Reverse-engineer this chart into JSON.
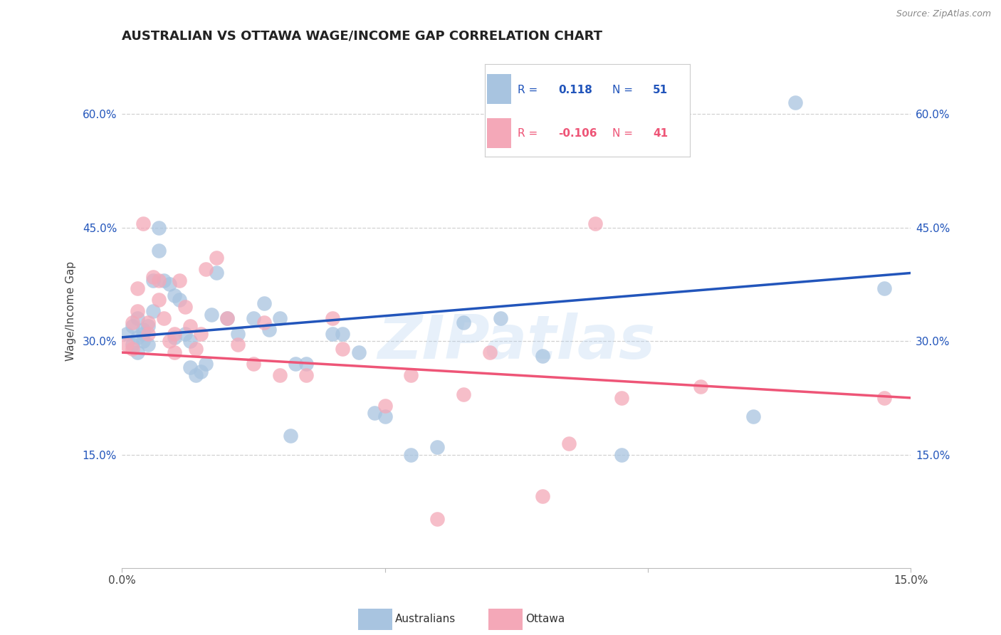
{
  "title": "AUSTRALIAN VS OTTAWA WAGE/INCOME GAP CORRELATION CHART",
  "source": "Source: ZipAtlas.com",
  "ylabel": "Wage/Income Gap",
  "x_min": 0.0,
  "x_max": 0.15,
  "y_min": 0.0,
  "y_max": 0.68,
  "y_ticks": [
    0.15,
    0.3,
    0.45,
    0.6
  ],
  "y_tick_labels": [
    "15.0%",
    "30.0%",
    "45.0%",
    "60.0%"
  ],
  "blue_R": 0.118,
  "blue_N": 51,
  "pink_R": -0.106,
  "pink_N": 41,
  "blue_color": "#A8C4E0",
  "pink_color": "#F4A8B8",
  "blue_line_color": "#2255BB",
  "pink_line_color": "#EE5577",
  "watermark": "ZIPatlas",
  "bg_color": "#FFFFFF",
  "grid_color": "#CCCCCC",
  "blue_line_y0": 0.305,
  "blue_line_y1": 0.39,
  "pink_line_y0": 0.285,
  "pink_line_y1": 0.225,
  "australians_points_x": [
    0.001,
    0.002,
    0.002,
    0.003,
    0.003,
    0.003,
    0.004,
    0.004,
    0.004,
    0.005,
    0.005,
    0.006,
    0.006,
    0.007,
    0.007,
    0.008,
    0.009,
    0.01,
    0.01,
    0.011,
    0.012,
    0.013,
    0.013,
    0.014,
    0.015,
    0.016,
    0.017,
    0.018,
    0.02,
    0.022,
    0.025,
    0.027,
    0.028,
    0.03,
    0.032,
    0.033,
    0.035,
    0.04,
    0.042,
    0.045,
    0.048,
    0.05,
    0.055,
    0.06,
    0.065,
    0.072,
    0.08,
    0.095,
    0.12,
    0.128,
    0.145
  ],
  "australians_points_y": [
    0.31,
    0.32,
    0.295,
    0.33,
    0.305,
    0.285,
    0.3,
    0.315,
    0.31,
    0.295,
    0.32,
    0.34,
    0.38,
    0.45,
    0.42,
    0.38,
    0.375,
    0.36,
    0.305,
    0.355,
    0.31,
    0.3,
    0.265,
    0.255,
    0.26,
    0.27,
    0.335,
    0.39,
    0.33,
    0.31,
    0.33,
    0.35,
    0.315,
    0.33,
    0.175,
    0.27,
    0.27,
    0.31,
    0.31,
    0.285,
    0.205,
    0.2,
    0.15,
    0.16,
    0.325,
    0.33,
    0.28,
    0.15,
    0.2,
    0.615,
    0.37
  ],
  "ottawa_points_x": [
    0.001,
    0.002,
    0.002,
    0.003,
    0.003,
    0.004,
    0.005,
    0.005,
    0.006,
    0.007,
    0.007,
    0.008,
    0.009,
    0.01,
    0.01,
    0.011,
    0.012,
    0.013,
    0.014,
    0.015,
    0.016,
    0.018,
    0.02,
    0.022,
    0.025,
    0.027,
    0.03,
    0.035,
    0.04,
    0.042,
    0.05,
    0.055,
    0.06,
    0.065,
    0.07,
    0.08,
    0.085,
    0.09,
    0.095,
    0.11,
    0.145
  ],
  "ottawa_points_y": [
    0.295,
    0.29,
    0.325,
    0.34,
    0.37,
    0.455,
    0.325,
    0.31,
    0.385,
    0.355,
    0.38,
    0.33,
    0.3,
    0.285,
    0.31,
    0.38,
    0.345,
    0.32,
    0.29,
    0.31,
    0.395,
    0.41,
    0.33,
    0.295,
    0.27,
    0.325,
    0.255,
    0.255,
    0.33,
    0.29,
    0.215,
    0.255,
    0.065,
    0.23,
    0.285,
    0.095,
    0.165,
    0.455,
    0.225,
    0.24,
    0.225
  ]
}
